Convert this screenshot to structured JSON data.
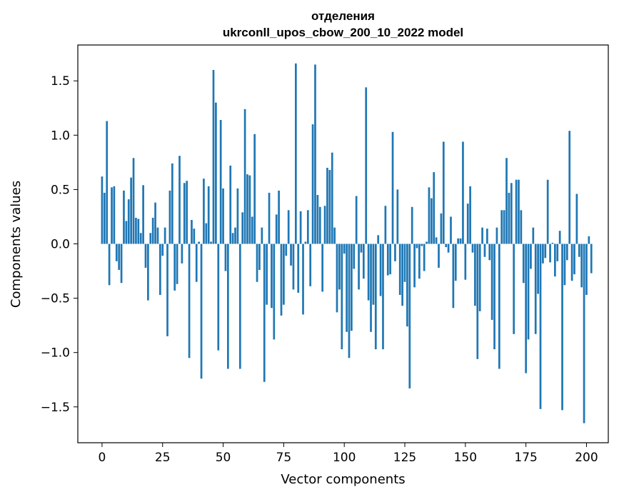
{
  "chart_data": {
    "type": "bar",
    "title_line1": "отделения",
    "title_line2": "ukrconll_upos_cbow_200_10_2022 model",
    "xlabel": "Vector components",
    "ylabel": "Components values",
    "xlim": [
      -10,
      209
    ],
    "ylim": [
      -1.83,
      1.83
    ],
    "xticks": [
      0,
      25,
      50,
      75,
      100,
      125,
      150,
      175,
      200
    ],
    "yticks": [
      -1.5,
      -1.0,
      -0.5,
      0.0,
      0.5,
      1.0,
      1.5
    ],
    "ytick_labels": [
      "−1.5",
      "−1.0",
      "−0.5",
      "0.0",
      "0.5",
      "1.0",
      "1.5"
    ],
    "bar_color": "#1f77b4",
    "grid": false,
    "values": [
      0.62,
      0.47,
      1.13,
      -0.38,
      0.52,
      0.53,
      -0.16,
      -0.24,
      -0.36,
      0.49,
      0.21,
      0.41,
      0.61,
      0.79,
      0.24,
      0.23,
      0.1,
      0.54,
      -0.22,
      -0.52,
      0.1,
      0.24,
      0.38,
      0.15,
      -0.47,
      -0.11,
      0.15,
      -0.85,
      0.49,
      0.74,
      -0.43,
      -0.37,
      0.81,
      -0.18,
      0.56,
      0.58,
      -1.05,
      0.22,
      0.14,
      -0.35,
      0.02,
      -1.24,
      0.6,
      0.19,
      0.53,
      0.02,
      1.6,
      1.3,
      -0.98,
      1.14,
      0.51,
      -0.25,
      -1.15,
      0.72,
      0.1,
      0.15,
      0.51,
      -1.15,
      0.29,
      1.24,
      0.64,
      0.63,
      0.25,
      1.01,
      -0.35,
      -0.24,
      0.15,
      -1.27,
      -0.56,
      0.47,
      -0.59,
      -0.88,
      0.27,
      0.49,
      -0.66,
      -0.56,
      -0.11,
      0.31,
      -0.2,
      -0.42,
      1.66,
      -0.45,
      0.3,
      -0.65,
      0.02,
      0.31,
      -0.39,
      1.1,
      1.65,
      0.45,
      0.34,
      -0.44,
      0.35,
      0.7,
      0.68,
      0.84,
      0.15,
      -0.63,
      -0.42,
      -0.97,
      -0.09,
      -0.81,
      -1.05,
      -0.8,
      -0.23,
      0.44,
      -0.42,
      -0.08,
      -0.32,
      1.44,
      -0.52,
      -0.81,
      -0.56,
      -0.97,
      0.08,
      -0.48,
      -0.97,
      0.35,
      -0.29,
      -0.28,
      1.03,
      -0.16,
      0.5,
      -0.47,
      -0.57,
      -0.35,
      -0.76,
      -1.33,
      0.34,
      -0.4,
      -0.04,
      -0.32,
      -0.02,
      -0.25,
      0.02,
      0.52,
      0.42,
      0.66,
      0.06,
      -0.22,
      0.28,
      0.94,
      -0.03,
      -0.08,
      0.25,
      -0.59,
      -0.34,
      0.05,
      0.05,
      0.94,
      -0.33,
      0.37,
      0.53,
      -0.08,
      -0.57,
      -1.06,
      -0.62,
      0.15,
      -0.12,
      0.14,
      -0.15,
      -0.7,
      -0.97,
      0.15,
      -1.15,
      0.31,
      0.31,
      0.79,
      0.47,
      0.56,
      -0.83,
      0.59,
      0.59,
      0.31,
      -0.36,
      -1.19,
      -0.88,
      -0.23,
      0.15,
      -0.83,
      -0.46,
      -1.52,
      -0.18,
      -0.13,
      0.59,
      -0.17,
      0.01,
      -0.3,
      -0.16,
      0.12,
      -1.53,
      -0.38,
      -0.15,
      1.04,
      -0.34,
      -0.28,
      0.46,
      -0.12,
      -0.4,
      -1.65,
      -0.47,
      0.07,
      -0.27
    ]
  }
}
